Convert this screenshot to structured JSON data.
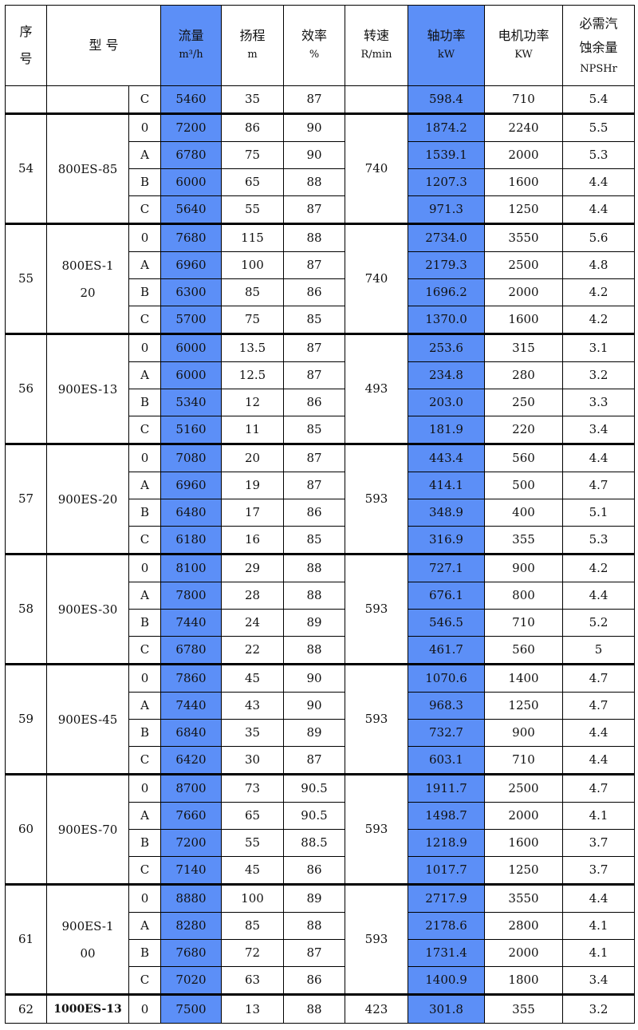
{
  "headers": [
    {
      "label": "序\n号",
      "unit": ""
    },
    {
      "label": "型 号",
      "unit": ""
    },
    {
      "label": "流量",
      "unit": "m³/h"
    },
    {
      "label": "扬程",
      "unit": "m"
    },
    {
      "label": "效率",
      "unit": "%"
    },
    {
      "label": "转速",
      "unit": "R/min"
    },
    {
      "label": "轴功率",
      "unit": "kW"
    },
    {
      "label": "电机功率",
      "unit": "KW"
    },
    {
      "label": "必需汽蚀余量",
      "unit": "NPSHr"
    }
  ],
  "highlight_color": "#5c8ff7",
  "groups": [
    {
      "no": "",
      "model": "",
      "speed": "",
      "rows": [
        [
          "C",
          "5460",
          "35",
          "87",
          "598.4",
          "710",
          "5.4"
        ]
      ]
    },
    {
      "no": "54",
      "model": "800ES-85",
      "speed": "740",
      "rows": [
        [
          "0",
          "7200",
          "86",
          "90",
          "1874.2",
          "2240",
          "5.5"
        ],
        [
          "A",
          "6780",
          "75",
          "90",
          "1539.1",
          "2000",
          "5.3"
        ],
        [
          "B",
          "6000",
          "65",
          "88",
          "1207.3",
          "1600",
          "4.4"
        ],
        [
          "C",
          "5640",
          "55",
          "87",
          "971.3",
          "1250",
          "4.4"
        ]
      ]
    },
    {
      "no": "55",
      "model": "800ES-120",
      "speed": "740",
      "rows": [
        [
          "0",
          "7680",
          "115",
          "88",
          "2734.0",
          "3550",
          "5.6"
        ],
        [
          "A",
          "6960",
          "100",
          "87",
          "2179.3",
          "2500",
          "4.8"
        ],
        [
          "B",
          "6300",
          "85",
          "86",
          "1696.2",
          "2000",
          "4.2"
        ],
        [
          "C",
          "5700",
          "75",
          "85",
          "1370.0",
          "1600",
          "4.2"
        ]
      ]
    },
    {
      "no": "56",
      "model": "900ES-13",
      "speed": "493",
      "rows": [
        [
          "0",
          "6000",
          "13.5",
          "87",
          "253.6",
          "315",
          "3.1"
        ],
        [
          "A",
          "6000",
          "12.5",
          "87",
          "234.8",
          "280",
          "3.2"
        ],
        [
          "B",
          "5340",
          "12",
          "86",
          "203.0",
          "250",
          "3.3"
        ],
        [
          "C",
          "5160",
          "11",
          "85",
          "181.9",
          "220",
          "3.4"
        ]
      ]
    },
    {
      "no": "57",
      "model": "900ES-20",
      "speed": "593",
      "rows": [
        [
          "0",
          "7080",
          "20",
          "87",
          "443.4",
          "560",
          "4.4"
        ],
        [
          "A",
          "6960",
          "19",
          "87",
          "414.1",
          "500",
          "4.7"
        ],
        [
          "B",
          "6480",
          "17",
          "86",
          "348.9",
          "400",
          "5.1"
        ],
        [
          "C",
          "6180",
          "16",
          "85",
          "316.9",
          "355",
          "5.3"
        ]
      ]
    },
    {
      "no": "58",
      "model": "900ES-30",
      "speed": "593",
      "rows": [
        [
          "0",
          "8100",
          "29",
          "88",
          "727.1",
          "900",
          "4.2"
        ],
        [
          "A",
          "7800",
          "28",
          "88",
          "676.1",
          "800",
          "4.4"
        ],
        [
          "B",
          "7440",
          "24",
          "89",
          "546.5",
          "710",
          "5.2"
        ],
        [
          "C",
          "6780",
          "22",
          "88",
          "461.7",
          "560",
          "5"
        ]
      ]
    },
    {
      "no": "59",
      "model": "900ES-45",
      "speed": "593",
      "rows": [
        [
          "0",
          "7860",
          "45",
          "90",
          "1070.6",
          "1400",
          "4.7"
        ],
        [
          "A",
          "7440",
          "43",
          "90",
          "968.3",
          "1250",
          "4.7"
        ],
        [
          "B",
          "6840",
          "35",
          "89",
          "732.7",
          "900",
          "4.4"
        ],
        [
          "C",
          "6420",
          "30",
          "87",
          "603.1",
          "710",
          "4.4"
        ]
      ]
    },
    {
      "no": "60",
      "model": "900ES-70",
      "speed": "593",
      "rows": [
        [
          "0",
          "8700",
          "73",
          "90.5",
          "1911.7",
          "2500",
          "4.7"
        ],
        [
          "A",
          "7660",
          "65",
          "90.5",
          "1498.7",
          "2000",
          "4.1"
        ],
        [
          "B",
          "7200",
          "55",
          "88.5",
          "1218.9",
          "1600",
          "3.7"
        ],
        [
          "C",
          "7140",
          "45",
          "86",
          "1017.7",
          "1250",
          "3.7"
        ]
      ]
    },
    {
      "no": "61",
      "model": "900ES-100",
      "speed": "593",
      "rows": [
        [
          "0",
          "8880",
          "100",
          "89",
          "2717.9",
          "3550",
          "4.4"
        ],
        [
          "A",
          "8280",
          "85",
          "88",
          "2178.6",
          "2800",
          "4.1"
        ],
        [
          "B",
          "7680",
          "72",
          "87",
          "1731.4",
          "2000",
          "4.1"
        ],
        [
          "C",
          "7020",
          "63",
          "86",
          "1400.9",
          "1800",
          "3.4"
        ]
      ]
    },
    {
      "no": "62",
      "model": "1000ES-13",
      "speed": "423",
      "rows": [
        [
          "0",
          "7500",
          "13",
          "88",
          "301.8",
          "355",
          "3.2"
        ]
      ]
    }
  ]
}
